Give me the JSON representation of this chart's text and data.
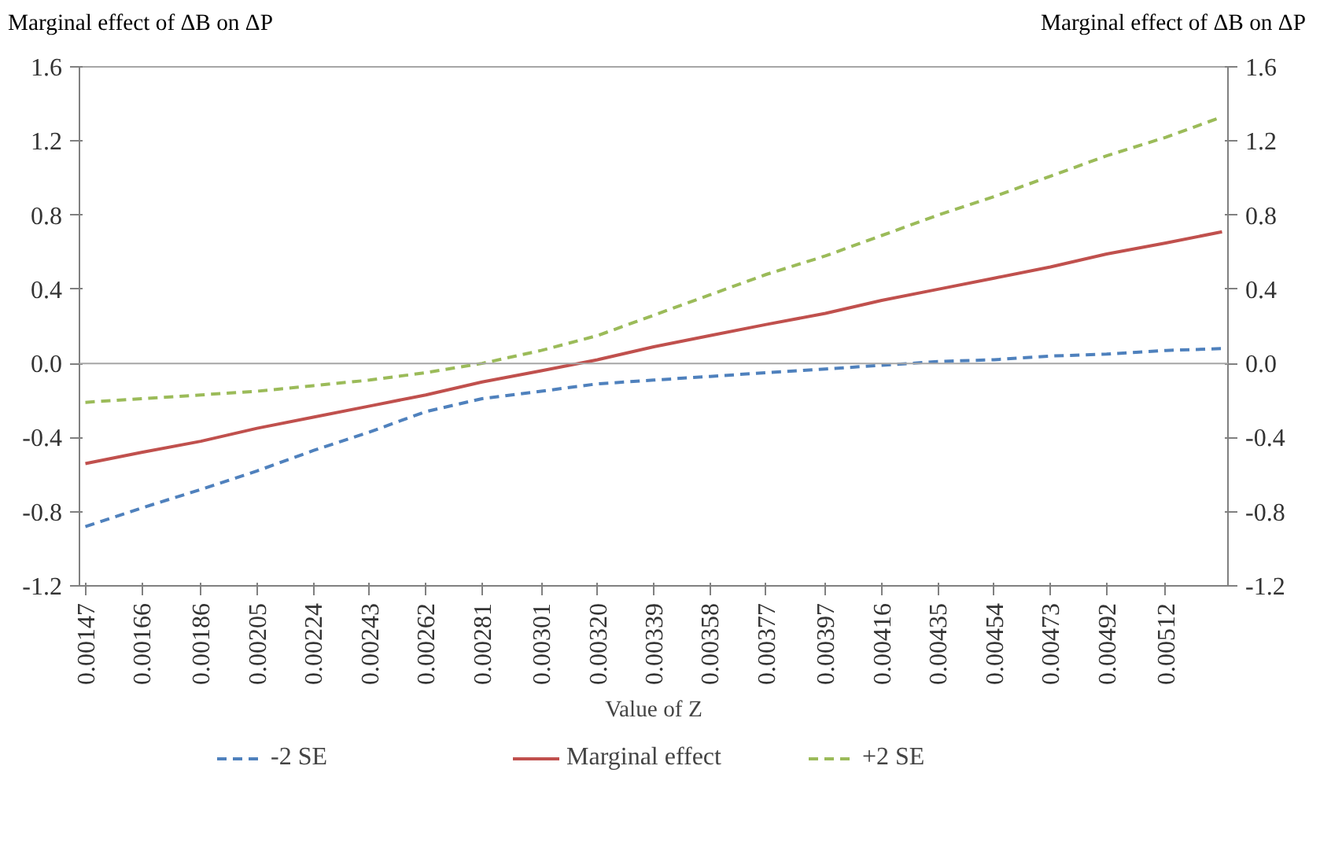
{
  "chart_data": {
    "type": "line",
    "xlabel": "Value of Z",
    "ylabel": "Marginal effect of ΔB on ΔP",
    "y2label": "Marginal effect of ΔB on ΔP",
    "x": [
      0.00147,
      0.00166,
      0.00186,
      0.00205,
      0.00224,
      0.00243,
      0.00262,
      0.00281,
      0.00301,
      0.0032,
      0.00339,
      0.00358,
      0.00377,
      0.00397,
      0.00416,
      0.00435,
      0.00454,
      0.00473,
      0.00492,
      0.00512,
      0.00531
    ],
    "xlim": [
      0.00145,
      0.00533
    ],
    "xticks": [
      0.00147,
      0.00166,
      0.00186,
      0.00205,
      0.00224,
      0.00243,
      0.00262,
      0.00281,
      0.00301,
      {
        "value": 0.0032,
        "label": "0.00320"
      },
      0.00339,
      0.00358,
      0.00377,
      0.00397,
      0.00416,
      0.00435,
      0.00454,
      0.00473,
      0.00492,
      0.00512
    ],
    "ylim": [
      -1.2,
      1.6
    ],
    "yticks": [
      {
        "value": -1.2,
        "label": "-1.2"
      },
      {
        "value": -0.8,
        "label": "-0.8"
      },
      {
        "value": -0.4,
        "label": "-0.4"
      },
      {
        "value": 0,
        "label": "0.0"
      },
      {
        "value": 0.4,
        "label": "0.4"
      },
      {
        "value": 0.8,
        "label": "0.8"
      },
      {
        "value": 1.2,
        "label": "1.2"
      },
      {
        "value": 1.6,
        "label": "1.6"
      }
    ],
    "y2lim": [
      -1.2,
      1.6
    ],
    "y2ticks": [
      {
        "value": -1.2,
        "label": "-1.2"
      },
      {
        "value": -0.8,
        "label": "-0.8"
      },
      {
        "value": -0.4,
        "label": "-0.4"
      },
      {
        "value": 0,
        "label": "0.0"
      },
      {
        "value": 0.4,
        "label": "0.4"
      },
      {
        "value": 0.8,
        "label": "0.8"
      },
      {
        "value": 1.2,
        "label": "1.2"
      },
      {
        "value": 1.6,
        "label": "1.6"
      }
    ],
    "series": [
      {
        "name": "-2 SE",
        "color": "#4f81bd",
        "line_style": "dashed",
        "values": [
          -0.88,
          -0.78,
          -0.68,
          -0.58,
          -0.47,
          -0.37,
          -0.26,
          -0.19,
          -0.15,
          -0.11,
          -0.09,
          -0.07,
          -0.05,
          -0.03,
          -0.01,
          0.01,
          0.02,
          0.04,
          0.05,
          0.07,
          0.08
        ]
      },
      {
        "name": "Marginal effect",
        "color": "#c0504d",
        "line_style": "solid",
        "values": [
          -0.54,
          -0.48,
          -0.42,
          -0.35,
          -0.29,
          -0.23,
          -0.17,
          -0.1,
          -0.04,
          0.02,
          0.09,
          0.15,
          0.21,
          0.27,
          0.34,
          0.4,
          0.46,
          0.52,
          0.59,
          0.65,
          0.71
        ]
      },
      {
        "name": "+2 SE",
        "color": "#9bbb59",
        "line_style": "dashed",
        "values": [
          -0.21,
          -0.19,
          -0.17,
          -0.15,
          -0.12,
          -0.09,
          -0.05,
          0.0,
          0.07,
          0.15,
          0.26,
          0.37,
          0.48,
          0.58,
          0.69,
          0.8,
          0.9,
          1.01,
          1.12,
          1.22,
          1.33
        ]
      }
    ],
    "ref_lines": [
      {
        "axis": "y",
        "value": 0,
        "color": "#a6a6a6"
      }
    ],
    "grid": false,
    "legend": "bottom",
    "marker": "none"
  }
}
